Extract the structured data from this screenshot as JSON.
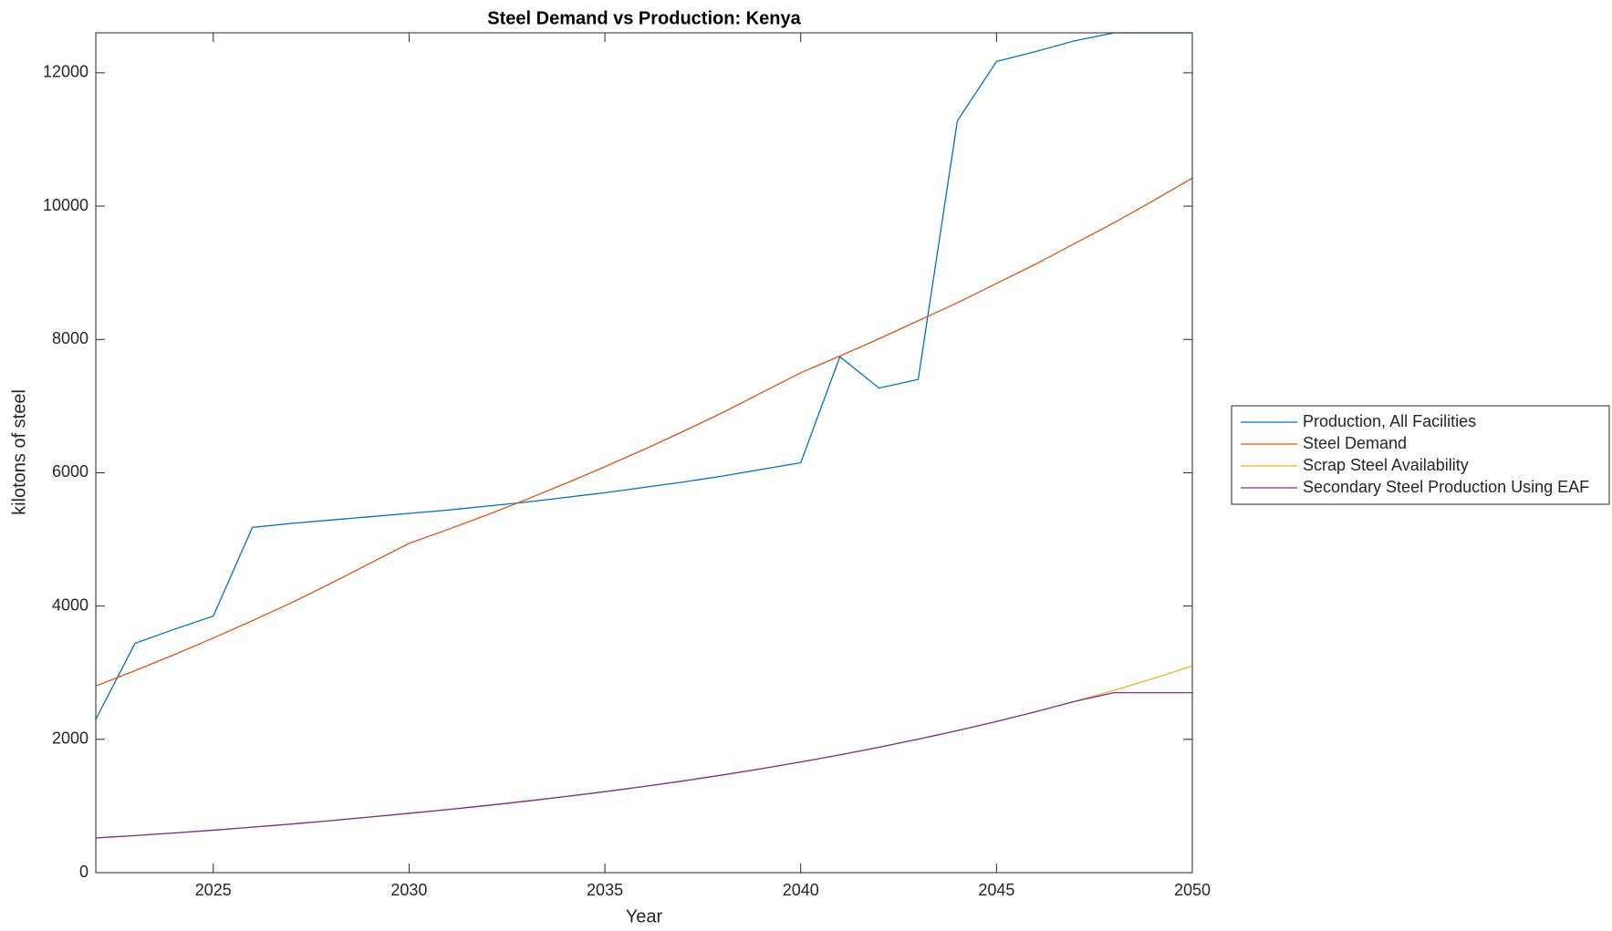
{
  "chart_data": {
    "type": "line",
    "title": "Steel Demand vs Production: Kenya",
    "xlabel": "Year",
    "ylabel": "kilotons of steel",
    "x": [
      2022,
      2023,
      2024,
      2025,
      2026,
      2027,
      2028,
      2029,
      2030,
      2031,
      2032,
      2033,
      2034,
      2035,
      2036,
      2037,
      2038,
      2039,
      2040,
      2041,
      2042,
      2043,
      2044,
      2045,
      2046,
      2047,
      2048,
      2049,
      2050
    ],
    "series": [
      {
        "name": "Production, All Facilities",
        "color": "#0072BD",
        "values": [
          2300,
          3440,
          3650,
          3850,
          5180,
          5240,
          5290,
          5340,
          5390,
          5440,
          5500,
          5560,
          5630,
          5700,
          5780,
          5860,
          5950,
          6050,
          6150,
          7740,
          7270,
          7400,
          11280,
          12170,
          12320,
          12480,
          12600,
          12600,
          12600
        ]
      },
      {
        "name": "Steel Demand",
        "color": "#D95319",
        "values": [
          2800,
          3030,
          3270,
          3520,
          3780,
          4050,
          4340,
          4640,
          4940,
          5150,
          5370,
          5600,
          5840,
          6090,
          6350,
          6620,
          6900,
          7200,
          7500,
          7750,
          8010,
          8280,
          8550,
          8840,
          9130,
          9440,
          9750,
          10080,
          10420
        ]
      },
      {
        "name": "Scrap Steel Availability",
        "color": "#EDB120",
        "values": [
          520,
          556,
          595,
          637,
          682,
          729,
          780,
          835,
          890,
          947,
          1008,
          1073,
          1142,
          1215,
          1293,
          1376,
          1465,
          1559,
          1660,
          1767,
          1881,
          2002,
          2131,
          2268,
          2414,
          2570,
          2735,
          2912,
          3100
        ]
      },
      {
        "name": "Secondary Steel Production Using EAF",
        "color": "#7E2F8E",
        "values": [
          520,
          556,
          595,
          637,
          682,
          729,
          780,
          835,
          890,
          947,
          1008,
          1073,
          1142,
          1215,
          1293,
          1376,
          1465,
          1559,
          1660,
          1767,
          1881,
          2002,
          2131,
          2268,
          2414,
          2570,
          2700,
          2700,
          2700
        ]
      }
    ],
    "xlim": [
      2022,
      2050
    ],
    "xticks": [
      2025,
      2030,
      2035,
      2040,
      2045,
      2050
    ],
    "ylim": [
      0,
      12600
    ],
    "yticks": [
      0,
      2000,
      4000,
      6000,
      8000,
      10000,
      12000
    ],
    "grid": false,
    "legend": "outside right"
  }
}
